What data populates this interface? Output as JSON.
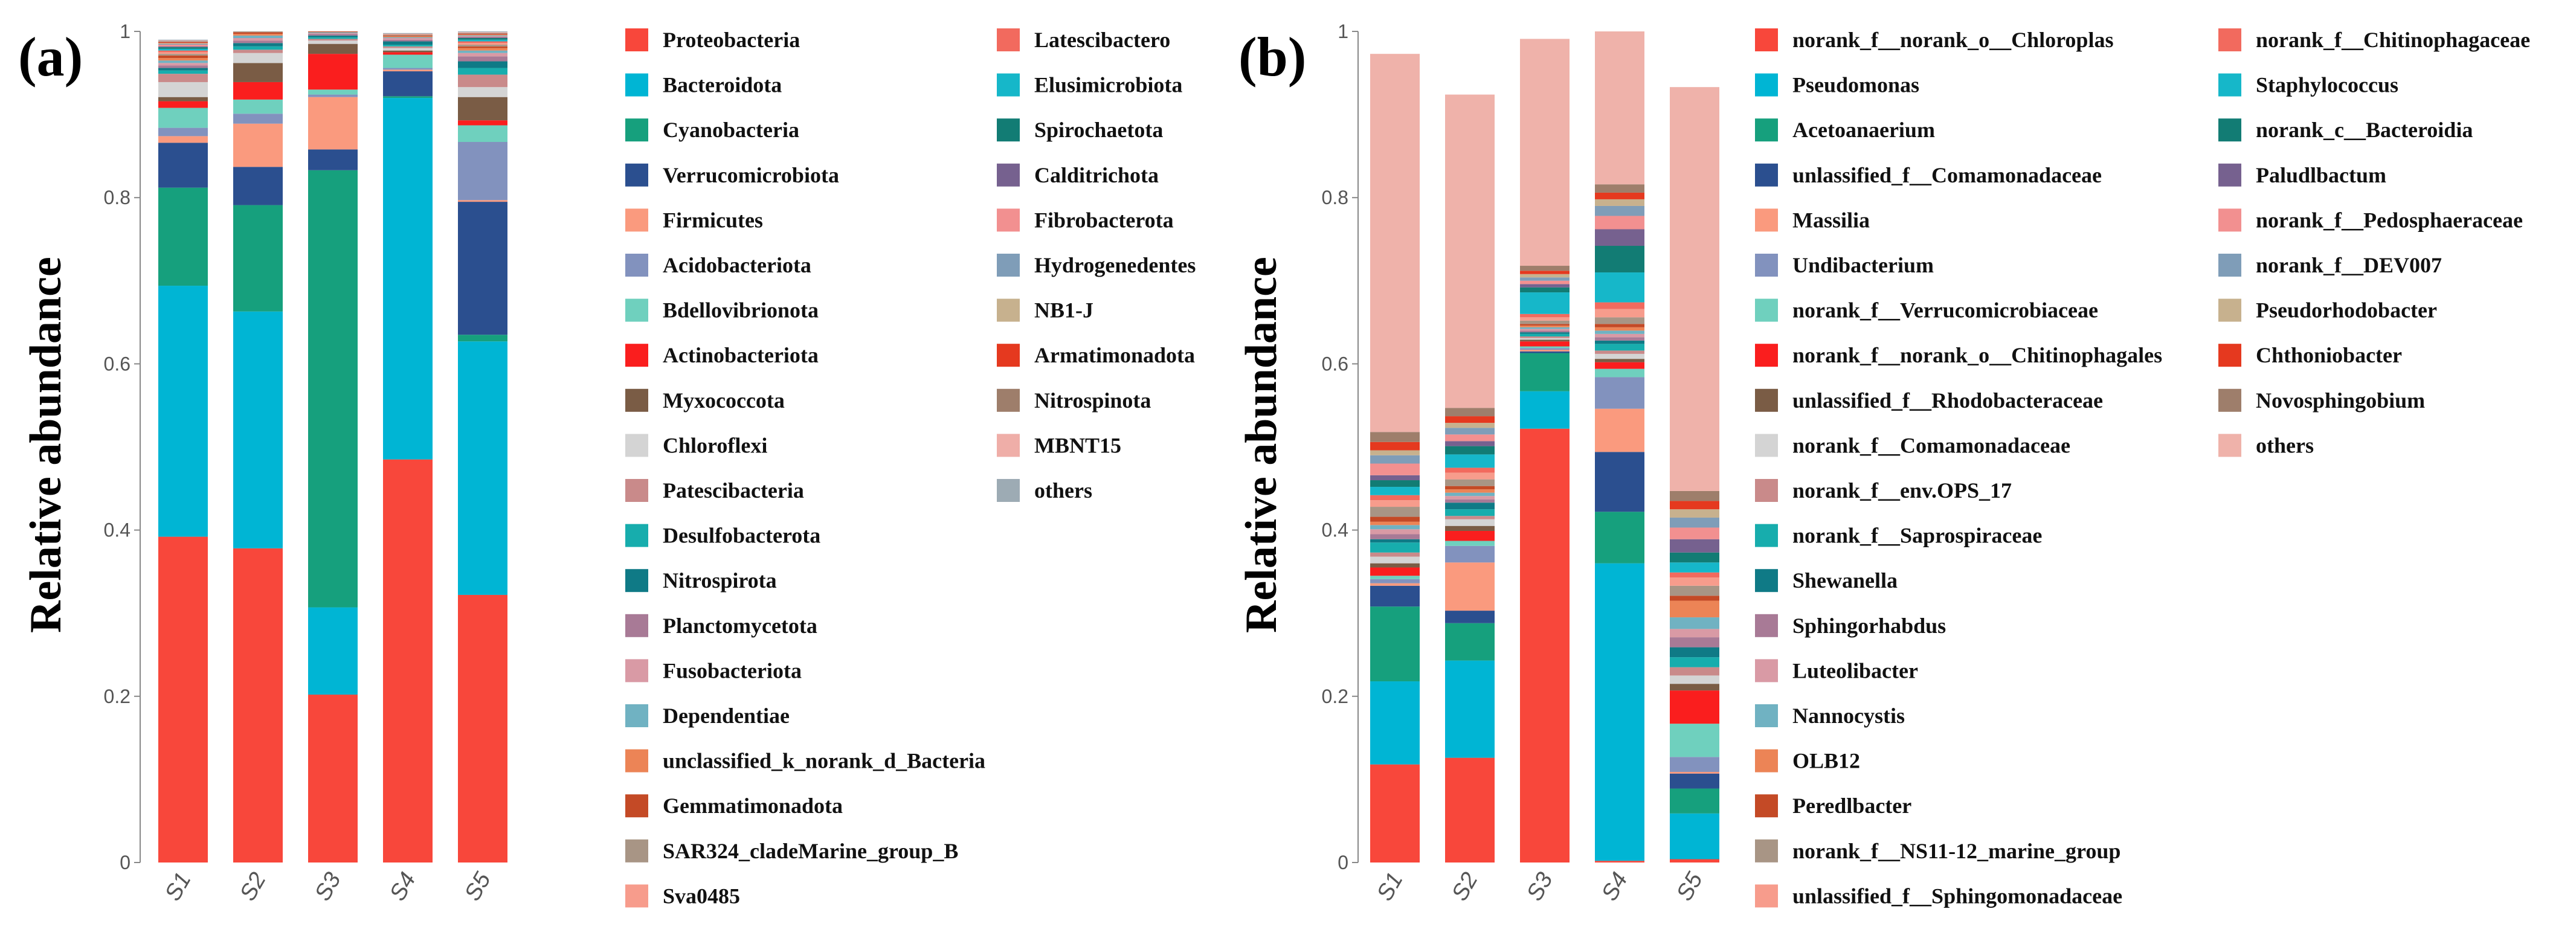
{
  "chart_data": [
    {
      "type": "bar",
      "stacked": true,
      "panel_label": "(a)",
      "ylabel": "Relative abundance",
      "ylim": [
        0,
        1
      ],
      "yticks": [
        "0",
        "0.2",
        "0.4",
        "0.6",
        "0.8",
        "1"
      ],
      "categories": [
        "S1",
        "S2",
        "S3",
        "S4",
        "S5"
      ],
      "legend_columns": 2,
      "series": [
        {
          "name": "Proteobacteria",
          "color": "#F8473B",
          "values": [
            0.392,
            0.378,
            0.202,
            0.485,
            0.322
          ]
        },
        {
          "name": "Bacteroidota",
          "color": "#00B5D4",
          "values": [
            0.302,
            0.285,
            0.105,
            0.435,
            0.305
          ]
        },
        {
          "name": "Cyanobacteria",
          "color": "#16A07D",
          "values": [
            0.118,
            0.128,
            0.526,
            0.002,
            0.008
          ]
        },
        {
          "name": "Verrucomicrobiota",
          "color": "#2B4F8F",
          "values": [
            0.054,
            0.046,
            0.025,
            0.03,
            0.16
          ]
        },
        {
          "name": "Firmicutes",
          "color": "#FA9A7E",
          "values": [
            0.008,
            0.052,
            0.063,
            0.002,
            0.002
          ]
        },
        {
          "name": "Acidobacteriota",
          "color": "#8292BE",
          "values": [
            0.01,
            0.012,
            0.003,
            0.002,
            0.07
          ]
        },
        {
          "name": "Bdellovibrionota",
          "color": "#6FD0BE",
          "values": [
            0.024,
            0.017,
            0.006,
            0.016,
            0.02
          ]
        },
        {
          "name": "Actinobacteriota",
          "color": "#FA1E1E",
          "values": [
            0.008,
            0.021,
            0.043,
            0.003,
            0.006
          ]
        },
        {
          "name": "Myxococcota",
          "color": "#7A5C45",
          "values": [
            0.005,
            0.023,
            0.012,
            0.002,
            0.028
          ]
        },
        {
          "name": "Chloroflexi",
          "color": "#D4D4D4",
          "values": [
            0.018,
            0.012,
            0.004,
            0.003,
            0.012
          ]
        },
        {
          "name": "Patescibacteria",
          "color": "#C98A8A",
          "values": [
            0.01,
            0.004,
            0.002,
            0.002,
            0.015
          ]
        },
        {
          "name": "Desulfobacterota",
          "color": "#17ADAD",
          "values": [
            0.004,
            0.004,
            0.002,
            0.002,
            0.008
          ]
        },
        {
          "name": "Nitrospirota",
          "color": "#0F7A86",
          "values": [
            0.003,
            0.004,
            0.002,
            0.004,
            0.008
          ]
        },
        {
          "name": "Planctomycetota",
          "color": "#A87A96",
          "values": [
            0.003,
            0.003,
            0.002,
            0.002,
            0.006
          ]
        },
        {
          "name": "Fusobacteriota",
          "color": "#D99AA5",
          "values": [
            0.003,
            0.003,
            0.001,
            0.002,
            0.004
          ]
        },
        {
          "name": "Dependentiae",
          "color": "#70B2C2",
          "values": [
            0.003,
            0.003,
            0.001,
            0.001,
            0.003
          ]
        },
        {
          "name": "unclassified_k_norank_d_Bacteria",
          "color": "#EC8456",
          "values": [
            0.003,
            0.002,
            0.0,
            0.001,
            0.003
          ]
        },
        {
          "name": "Gemmatimonadota",
          "color": "#C44A26",
          "values": [
            0.003,
            0.002,
            0.001,
            0.001,
            0.002
          ]
        },
        {
          "name": "SAR324_cladeMarine_group_B",
          "color": "#A89585",
          "values": [
            0.002,
            0.002,
            0.0,
            0.001,
            0.002
          ]
        },
        {
          "name": "Sva0485",
          "color": "#F79C8C",
          "values": [
            0.002,
            0.002,
            0.0,
            0.001,
            0.002
          ]
        },
        {
          "name": "Latescibactero",
          "color": "#F26A5E",
          "values": [
            0.002,
            0.002,
            0.0,
            0.0,
            0.002
          ]
        },
        {
          "name": "Elusimicrobiota",
          "color": "#16B7C9",
          "values": [
            0.002,
            0.001,
            0.0,
            0.0,
            0.002
          ]
        },
        {
          "name": "Spirochaetota",
          "color": "#127C74",
          "values": [
            0.002,
            0.001,
            0.0,
            0.0,
            0.002
          ]
        },
        {
          "name": "Calditrichota",
          "color": "#76618F",
          "values": [
            0.001,
            0.001,
            0.0,
            0.0,
            0.001
          ]
        },
        {
          "name": "Fibrobacterota",
          "color": "#F29090",
          "values": [
            0.002,
            0.001,
            0.0,
            0.0,
            0.001
          ]
        },
        {
          "name": "Hydrogenedentes",
          "color": "#7F9DB8",
          "values": [
            0.001,
            0.001,
            0.0,
            0.0,
            0.001
          ]
        },
        {
          "name": "NB1-J",
          "color": "#C7B18E",
          "values": [
            0.001,
            0.001,
            0.0,
            0.0,
            0.001
          ]
        },
        {
          "name": "Armatimonadota",
          "color": "#E5391F",
          "values": [
            0.001,
            0.001,
            0.0,
            0.0,
            0.001
          ]
        },
        {
          "name": "Nitrospinota",
          "color": "#9E7E6B",
          "values": [
            0.001,
            0.001,
            0.0,
            0.0,
            0.001
          ]
        },
        {
          "name": "MBNT15",
          "color": "#EFAEA8",
          "values": [
            0.001,
            0.001,
            0.0,
            0.0,
            0.001
          ]
        },
        {
          "name": "others",
          "color": "#9DABB4",
          "values": [
            0.001,
            0.001,
            0.001,
            0.001,
            0.001
          ]
        }
      ]
    },
    {
      "type": "bar",
      "stacked": true,
      "panel_label": "(b)",
      "ylabel": "Relative abundance",
      "ylim": [
        0,
        1
      ],
      "yticks": [
        "0",
        "0.2",
        "0.4",
        "0.6",
        "0.8",
        "1"
      ],
      "categories": [
        "S1",
        "S2",
        "S3",
        "S4",
        "S5"
      ],
      "legend_columns": 2,
      "series": [
        {
          "name": "norank_f__norank_o__Chloroplas",
          "color": "#F8473B",
          "values": [
            0.118,
            0.126,
            0.522,
            0.002,
            0.004
          ]
        },
        {
          "name": "Pseudomonas",
          "color": "#00B5D4",
          "values": [
            0.1,
            0.117,
            0.045,
            0.358,
            0.055
          ]
        },
        {
          "name": "Acetoanaerium",
          "color": "#16A07D",
          "values": [
            0.09,
            0.045,
            0.046,
            0.062,
            0.03
          ]
        },
        {
          "name": "unlassified_f__Comamonadaceae",
          "color": "#2B4F8F",
          "values": [
            0.025,
            0.015,
            0.002,
            0.072,
            0.018
          ]
        },
        {
          "name": "Massilia",
          "color": "#FA9A7E",
          "values": [
            0.003,
            0.058,
            0.002,
            0.052,
            0.002
          ]
        },
        {
          "name": "Undibacterium",
          "color": "#8292BE",
          "values": [
            0.005,
            0.02,
            0.002,
            0.038,
            0.018
          ]
        },
        {
          "name": "norank_f__Verrucomicrobiaceae",
          "color": "#6FD0BE",
          "values": [
            0.004,
            0.006,
            0.002,
            0.01,
            0.04
          ]
        },
        {
          "name": "norank_f__norank_o__Chitinophagales",
          "color": "#FA1E1E",
          "values": [
            0.01,
            0.012,
            0.006,
            0.008,
            0.04
          ]
        },
        {
          "name": "unlassified_f__Rhodobacteraceae",
          "color": "#7A5C45",
          "values": [
            0.005,
            0.006,
            0.002,
            0.004,
            0.008
          ]
        },
        {
          "name": "norank_f__Comamonadaceae",
          "color": "#D4D4D4",
          "values": [
            0.008,
            0.008,
            0.002,
            0.006,
            0.01
          ]
        },
        {
          "name": "norank_f__env.OPS_17",
          "color": "#C98A8A",
          "values": [
            0.005,
            0.004,
            0.002,
            0.004,
            0.01
          ]
        },
        {
          "name": "norank_f__Saprospiraceae",
          "color": "#17ADAD",
          "values": [
            0.012,
            0.008,
            0.003,
            0.008,
            0.012
          ]
        },
        {
          "name": "Shewanella",
          "color": "#0F7A86",
          "values": [
            0.004,
            0.008,
            0.002,
            0.004,
            0.012
          ]
        },
        {
          "name": "Sphingorhabdus",
          "color": "#A87A96",
          "values": [
            0.006,
            0.004,
            0.002,
            0.004,
            0.012
          ]
        },
        {
          "name": "Luteolibacter",
          "color": "#D99AA5",
          "values": [
            0.006,
            0.004,
            0.002,
            0.004,
            0.01
          ]
        },
        {
          "name": "Nannocystis",
          "color": "#70B2C2",
          "values": [
            0.005,
            0.004,
            0.002,
            0.004,
            0.014
          ]
        },
        {
          "name": "OLB12",
          "color": "#EC8456",
          "values": [
            0.004,
            0.004,
            0.002,
            0.004,
            0.02
          ]
        },
        {
          "name": "Peredlbacter",
          "color": "#C44A26",
          "values": [
            0.006,
            0.004,
            0.002,
            0.004,
            0.006
          ]
        },
        {
          "name": "norank_f__NS11-12_marine_group",
          "color": "#A89585",
          "values": [
            0.012,
            0.008,
            0.004,
            0.008,
            0.012
          ]
        },
        {
          "name": "unlassified_f__Sphingomonadaceae",
          "color": "#F79C8C",
          "values": [
            0.008,
            0.008,
            0.004,
            0.01,
            0.01
          ]
        },
        {
          "name": "norank_f__Chitinophagaceae",
          "color": "#F26A5E",
          "values": [
            0.006,
            0.006,
            0.004,
            0.008,
            0.006
          ]
        },
        {
          "name": "Staphylococcus",
          "color": "#16B7C9",
          "values": [
            0.01,
            0.016,
            0.026,
            0.036,
            0.012
          ]
        },
        {
          "name": "norank_c__Bacteroidia",
          "color": "#127C74",
          "values": [
            0.008,
            0.01,
            0.006,
            0.032,
            0.012
          ]
        },
        {
          "name": "Paludlbactum",
          "color": "#76618F",
          "values": [
            0.006,
            0.006,
            0.004,
            0.02,
            0.016
          ]
        },
        {
          "name": "norank_f__Pedosphaeraceae",
          "color": "#F29090",
          "values": [
            0.014,
            0.008,
            0.004,
            0.016,
            0.014
          ]
        },
        {
          "name": "norank_f__DEV007",
          "color": "#7F9DB8",
          "values": [
            0.01,
            0.008,
            0.004,
            0.012,
            0.012
          ]
        },
        {
          "name": "Pseudorhodobacter",
          "color": "#C7B18E",
          "values": [
            0.006,
            0.006,
            0.004,
            0.008,
            0.01
          ]
        },
        {
          "name": "Chthoniobacter",
          "color": "#E5391F",
          "values": [
            0.01,
            0.008,
            0.004,
            0.008,
            0.01
          ]
        },
        {
          "name": "Novosphingobium",
          "color": "#9E7E6B",
          "values": [
            0.012,
            0.01,
            0.006,
            0.01,
            0.012
          ]
        },
        {
          "name": "others",
          "color": "#EFB2AA",
          "values": [
            0.455,
            0.377,
            0.273,
            0.196,
            0.486
          ]
        }
      ]
    }
  ]
}
